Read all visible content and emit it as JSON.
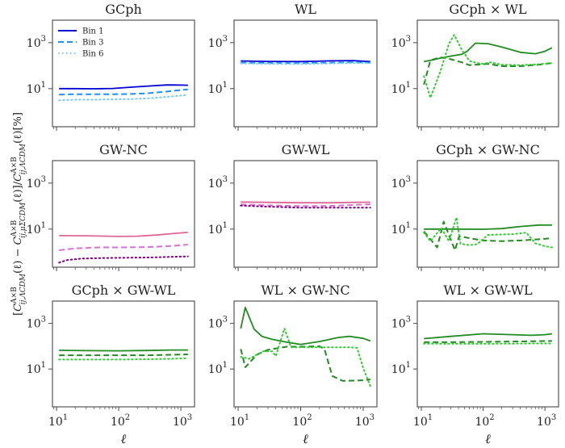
{
  "chart_data": {
    "type": "line",
    "layout": "3x3 grid",
    "ylabel": "[C^{A×B}_{ij,ΛCDM}(ℓ) − C^{A×B}_{ij,μΣCDM}(ℓ)]/C^{A×B}_{ij,ΛCDM}(ℓ)[%]",
    "ylabel_parts": {
      "open": "[",
      "c1": "C",
      "sup": "A×B",
      "sub_lcdm": "ij,ΛCDM",
      "sub_musigma": "ij,μΣCDM",
      "ell": "(ℓ)",
      "minus": " − ",
      "slash": "]/",
      "percent": "[%]"
    },
    "xscale": "log",
    "yscale": "log",
    "xlim": [
      8.6,
      1660
    ],
    "ylim": [
      0.22,
      9500
    ],
    "xticks": [
      10,
      100,
      1000
    ],
    "xtick_labels": [
      {
        "base": "10",
        "exp": "1"
      },
      {
        "base": "10",
        "exp": "2"
      },
      {
        "base": "10",
        "exp": "3"
      }
    ],
    "yticks": [
      10,
      1000
    ],
    "ytick_labels": [
      {
        "base": "10",
        "exp": "1"
      },
      {
        "base": "10",
        "exp": "3"
      }
    ],
    "xlabel": "ℓ",
    "legend": {
      "panel": 0,
      "placement": "upper-left",
      "entries": [
        "Bin 1",
        "Bin 3",
        "Bin 6"
      ]
    },
    "colors": {
      "blue": [
        "#0000d6",
        "#1e8fff",
        "#7fcaf5"
      ],
      "pink": [
        "#de6695",
        "#da70d6",
        "#80007f"
      ],
      "green": [
        "#228b22",
        "#228b22",
        "#33cc33"
      ]
    },
    "panels": [
      {
        "title": "GCph",
        "palette": "blue",
        "series": [
          {
            "name": "Bin 1",
            "style": "solid",
            "x": [
              11,
              20,
              40,
              80,
              150,
              300,
              600,
              1000,
              1300
            ],
            "y": [
              10,
              10,
              9.8,
              10.2,
              11.5,
              13,
              14.5,
              14.3,
              14
            ]
          },
          {
            "name": "Bin 3",
            "style": "dashed",
            "x": [
              11,
              20,
              40,
              80,
              150,
              300,
              600,
              1000,
              1300
            ],
            "y": [
              5.5,
              5.7,
              5.7,
              5.7,
              5.8,
              6.3,
              7.5,
              8.7,
              9.3
            ]
          },
          {
            "name": "Bin 6",
            "style": "dotted",
            "x": [
              11,
              20,
              40,
              80,
              150,
              300,
              600,
              1000,
              1300
            ],
            "y": [
              3.1,
              3.3,
              3.3,
              3.4,
              3.5,
              3.8,
              4.4,
              5,
              5.3
            ]
          }
        ]
      },
      {
        "title": "WL",
        "palette": "blue",
        "series": [
          {
            "name": "Bin 1",
            "style": "solid",
            "x": [
              11,
              30,
              100,
              300,
              700,
              1300
            ],
            "y": [
              160,
              152,
              150,
              162,
              165,
              150
            ]
          },
          {
            "name": "Bin 3",
            "style": "dashed",
            "x": [
              11,
              30,
              100,
              300,
              700,
              1300
            ],
            "y": [
              135,
              130,
              128,
              135,
              140,
              135
            ]
          },
          {
            "name": "Bin 6",
            "style": "dotted",
            "x": [
              11,
              30,
              100,
              300,
              700,
              1300
            ],
            "y": [
              125,
              120,
              118,
              125,
              130,
              128
            ]
          }
        ]
      },
      {
        "title": "GCph × WL",
        "palette": "green",
        "series": [
          {
            "name": "Bin 1",
            "style": "solid",
            "x": [
              11,
              15,
              20,
              30,
              45,
              55,
              75,
              120,
              200,
              400,
              700,
              1000,
              1300
            ],
            "y": [
              150,
              175,
              210,
              260,
              310,
              420,
              950,
              900,
              650,
              380,
              330,
              420,
              600
            ]
          },
          {
            "name": "Bin 3",
            "style": "dashed",
            "x": [
              11,
              14,
              20,
              30,
              45,
              60,
              80,
              120,
              200,
              400,
              800,
              1300
            ],
            "y": [
              15,
              170,
              230,
              190,
              140,
              105,
              110,
              120,
              95,
              95,
              110,
              130
            ]
          },
          {
            "name": "Bin 6",
            "style": "dotted",
            "x": [
              11,
              14,
              20,
              28,
              34,
              45,
              60,
              80,
              100,
              130,
              200,
              400,
              800,
              1300
            ],
            "y": [
              35,
              4,
              50,
              900,
              2200,
              500,
              160,
              130,
              120,
              140,
              110,
              105,
              115,
              130
            ]
          }
        ]
      },
      {
        "title": "GW-NC",
        "palette": "pink",
        "series": [
          {
            "name": "Bin 1",
            "style": "solid",
            "x": [
              11,
              30,
              100,
              200,
              400,
              800,
              1300
            ],
            "y": [
              5.2,
              5.1,
              4.8,
              4.9,
              5.5,
              6.5,
              7.2
            ]
          },
          {
            "name": "Bin 3",
            "style": "dashed",
            "x": [
              11,
              20,
              50,
              100,
              300,
              700,
              1300
            ],
            "y": [
              1.2,
              1.45,
              1.6,
              1.6,
              1.65,
              1.85,
              2.1
            ]
          },
          {
            "name": "Bin 6",
            "style": "dotted",
            "x": [
              11,
              15,
              25,
              50,
              100,
              300,
              700,
              1300
            ],
            "y": [
              0.35,
              0.45,
              0.52,
              0.55,
              0.56,
              0.58,
              0.62,
              0.65
            ]
          }
        ]
      },
      {
        "title": "GW-WL",
        "palette": "pink",
        "series": [
          {
            "name": "Bin 1",
            "style": "solid",
            "x": [
              11,
              30,
              100,
              300,
              700,
              1300
            ],
            "y": [
              150,
              145,
              140,
              140,
              145,
              148
            ]
          },
          {
            "name": "Bin 3",
            "style": "dashed",
            "x": [
              11,
              30,
              100,
              300,
              700,
              1300
            ],
            "y": [
              118,
              108,
              100,
              102,
              112,
              120
            ]
          },
          {
            "name": "Bin 6",
            "style": "dotted",
            "x": [
              11,
              30,
              100,
              300,
              700,
              1300
            ],
            "y": [
              105,
              95,
              85,
              85,
              85,
              85
            ]
          }
        ]
      },
      {
        "title": "GCph × GW-NC",
        "palette": "green",
        "series": [
          {
            "name": "Bin 1",
            "style": "solid",
            "x": [
              11,
              30,
              100,
              200,
              400,
              800,
              1300
            ],
            "y": [
              10,
              10,
              9.8,
              10.5,
              13,
              15,
              15
            ]
          },
          {
            "name": "Bin 3",
            "style": "dashed",
            "x": [
              11,
              18,
              23,
              35,
              41,
              60,
              100,
              200,
              400,
              800,
              1300
            ],
            "y": [
              8,
              1.6,
              21,
              1.2,
              5,
              4,
              3.2,
              3,
              3.2,
              3.6,
              4
            ]
          },
          {
            "name": "Bin 6",
            "style": "dotted",
            "x": [
              11,
              14,
              21,
              28,
              37,
              43,
              60,
              80,
              120,
              300,
              500,
              700,
              1000,
              1300
            ],
            "y": [
              7,
              3,
              11,
              3,
              32,
              2.3,
              2,
              2.2,
              5.6,
              6,
              7,
              2.4,
              1.8,
              1.6
            ]
          }
        ]
      },
      {
        "title": "GCph × GW-WL",
        "palette": "green",
        "series": [
          {
            "name": "Bin 1",
            "style": "solid",
            "x": [
              11,
              30,
              100,
              300,
              700,
              1300
            ],
            "y": [
              66,
              64,
              63,
              65,
              68,
              68
            ]
          },
          {
            "name": "Bin 3",
            "style": "dashed",
            "x": [
              11,
              30,
              100,
              300,
              700,
              1300
            ],
            "y": [
              40,
              40,
              40,
              40,
              42,
              44
            ]
          },
          {
            "name": "Bin 6",
            "style": "dotted",
            "x": [
              11,
              30,
              100,
              300,
              700,
              1300
            ],
            "y": [
              26,
              26,
              26,
              27,
              28,
              30
            ]
          }
        ]
      },
      {
        "title": "WL × GW-NC",
        "palette": "green",
        "series": [
          {
            "name": "Bin 1",
            "style": "solid",
            "x": [
              11,
              13,
              18,
              24,
              35,
              60,
              100,
              200,
              400,
              600,
              1000,
              1300
            ],
            "y": [
              600,
              5000,
              560,
              270,
              200,
              150,
              120,
              160,
              240,
              270,
              220,
              170
            ]
          },
          {
            "name": "Bin 3",
            "style": "dashed",
            "x": [
              11,
              13,
              20,
              30,
              60,
              100,
              200,
              240,
              320,
              470,
              1000,
              1300
            ],
            "y": [
              75,
              12,
              43,
              70,
              95,
              95,
              100,
              75,
              5,
              3,
              3.2,
              3.5
            ]
          },
          {
            "name": "Bin 6",
            "style": "dotted",
            "x": [
              11,
              15,
              25,
              35,
              40,
              55,
              70,
              100,
              300,
              600,
              800,
              1000,
              1300
            ],
            "y": [
              34,
              28,
              60,
              60,
              37,
              600,
              90,
              90,
              90,
              90,
              85,
              11,
              1.8
            ]
          }
        ]
      },
      {
        "title": "WL × GW-WL",
        "palette": "green",
        "series": [
          {
            "name": "Bin 1",
            "style": "solid",
            "x": [
              11,
              30,
              100,
              300,
              600,
              1000,
              1300
            ],
            "y": [
              215,
              270,
              350,
              320,
              300,
              320,
              350
            ]
          },
          {
            "name": "Bin 3",
            "style": "dashed",
            "x": [
              11,
              30,
              100,
              300,
              700,
              1300
            ],
            "y": [
              150,
              150,
              155,
              160,
              165,
              170
            ]
          },
          {
            "name": "Bin 6",
            "style": "dotted",
            "x": [
              11,
              30,
              100,
              300,
              700,
              1300
            ],
            "y": [
              130,
              128,
              128,
              130,
              132,
              132
            ]
          }
        ]
      }
    ]
  }
}
